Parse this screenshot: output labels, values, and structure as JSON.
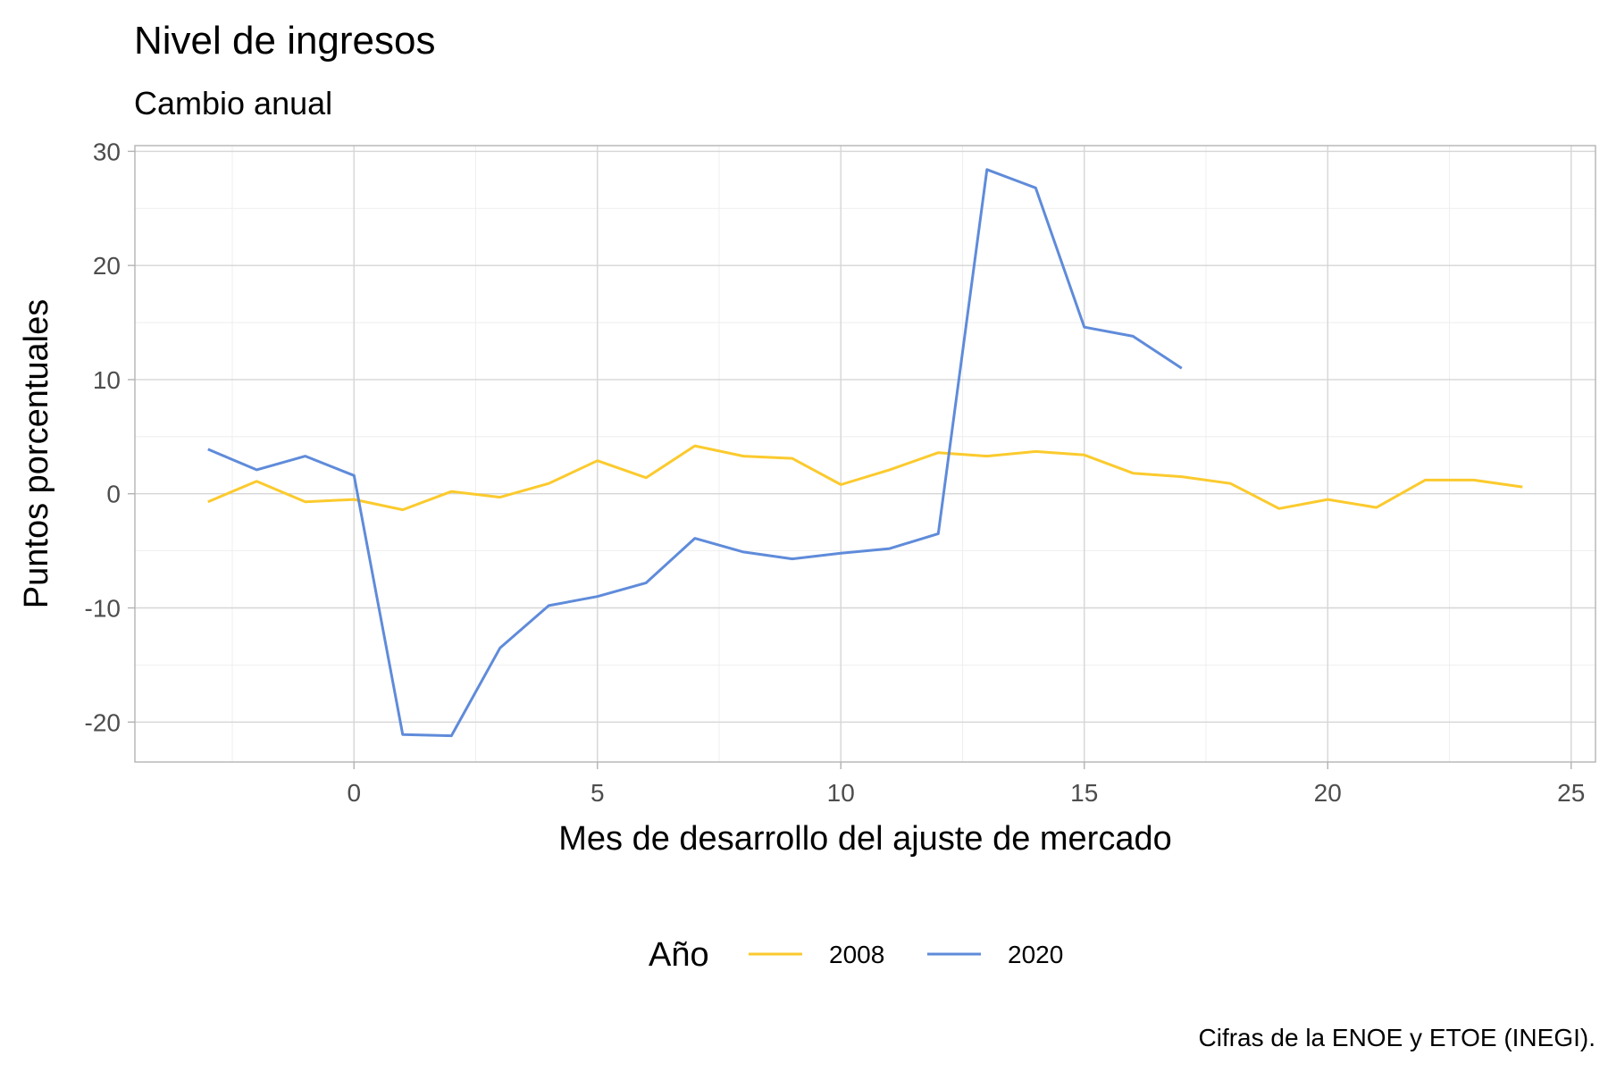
{
  "chart_data": {
    "type": "line",
    "title": "Nivel de ingresos",
    "subtitle": "Cambio anual",
    "xlabel": "Mes de desarrollo del ajuste de mercado",
    "ylabel": "Puntos porcentuales",
    "caption": "Cifras de la ENOE y ETOE (INEGI).",
    "xlim": [
      -4.5,
      25.5
    ],
    "ylim": [
      -23.5,
      30.5
    ],
    "x_ticks": [
      0,
      5,
      10,
      15,
      20,
      25
    ],
    "y_ticks": [
      -20,
      -10,
      0,
      10,
      20,
      30
    ],
    "grid": true,
    "legend": {
      "title": "Año",
      "position": "bottom"
    },
    "series": [
      {
        "name": "2008",
        "color": "#FBCA2D",
        "x": [
          -3,
          -2,
          -1,
          0,
          1,
          2,
          3,
          4,
          5,
          6,
          7,
          8,
          9,
          10,
          11,
          12,
          13,
          14,
          15,
          16,
          17,
          18,
          19,
          20,
          21,
          22,
          23,
          24
        ],
        "y": [
          -0.7,
          1.1,
          -0.7,
          -0.5,
          -1.4,
          0.2,
          -0.3,
          0.9,
          2.9,
          1.4,
          4.2,
          3.3,
          3.1,
          0.8,
          2.1,
          3.6,
          3.3,
          3.7,
          3.4,
          1.8,
          1.5,
          0.9,
          -1.3,
          -0.5,
          -1.2,
          1.2,
          1.2,
          0.6
        ]
      },
      {
        "name": "2020",
        "color": "#5F8BDA",
        "x": [
          -3,
          -2,
          -1,
          0,
          1,
          2,
          3,
          4,
          5,
          6,
          7,
          8,
          9,
          10,
          11,
          12,
          13,
          14,
          15,
          16,
          17
        ],
        "y": [
          3.9,
          2.1,
          3.3,
          1.6,
          -21.1,
          -21.2,
          -13.5,
          -9.8,
          -9.0,
          -7.8,
          -3.9,
          -5.1,
          -5.7,
          -5.2,
          -4.8,
          -3.5,
          28.4,
          26.8,
          14.6,
          13.8,
          11.0
        ]
      }
    ]
  }
}
